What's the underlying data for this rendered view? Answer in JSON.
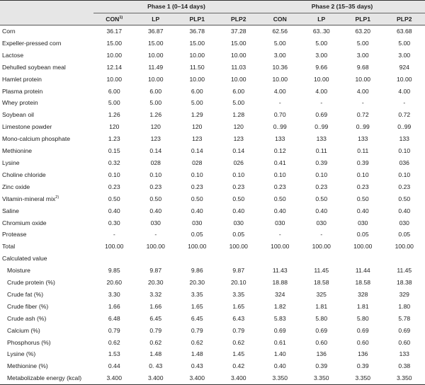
{
  "header": {
    "phase1": "Phase 1 (0–14 days)",
    "phase2": "Phase 2 (15–35 days)",
    "columns": [
      "CON",
      "LP",
      "PLP1",
      "PLP2",
      "CON",
      "LP",
      "PLP1",
      "PLP2"
    ],
    "con_footnote": "1)"
  },
  "rows": [
    {
      "label": "Corn",
      "values": [
        "36.17",
        "36.87",
        "36.78",
        "37.28",
        "62.56",
        "63..30",
        "63.20",
        "63.68"
      ]
    },
    {
      "label": "Expeller-pressed corn",
      "values": [
        "15.00",
        "15.00",
        "15.00",
        "15.00",
        "5.00",
        "5.00",
        "5.00",
        "5.00"
      ]
    },
    {
      "label": "Lactose",
      "values": [
        "10.00",
        "10.00",
        "10.00",
        "10.00",
        "3.00",
        "3.00",
        "3.00",
        "3.00"
      ]
    },
    {
      "label": "Dehulled soybean meal",
      "values": [
        "12.14",
        "11.49",
        "11.50",
        "11.03",
        "10.36",
        "9.66",
        "9.68",
        "924"
      ]
    },
    {
      "label": "Hamlet protein",
      "values": [
        "10.00",
        "10.00",
        "10.00",
        "10.00",
        "10.00",
        "10.00",
        "10.00",
        "10.00"
      ]
    },
    {
      "label": "Plasma protein",
      "values": [
        "6.00",
        "6.00",
        "6.00",
        "6.00",
        "4.00",
        "4.00",
        "4.00",
        "4.00"
      ]
    },
    {
      "label": "Whey protein",
      "values": [
        "5.00",
        "5.00",
        "5.00",
        "5.00",
        "-",
        "-",
        "-",
        "-"
      ]
    },
    {
      "label": "Soybean oil",
      "values": [
        "1.26",
        "1.26",
        "1.29",
        "1.28",
        "0.70",
        "0.69",
        "0.72",
        "0.72"
      ]
    },
    {
      "label": "Limestone powder",
      "values": [
        "120",
        "120",
        "120",
        "120",
        "0..99",
        "0..99",
        "0..99",
        "0..99"
      ]
    },
    {
      "label": "Mono-calcium phosphate",
      "values": [
        "1.23",
        "123",
        "123",
        "123",
        "133",
        "133",
        "133",
        "133"
      ]
    },
    {
      "label": "Methionine",
      "values": [
        "0.15",
        "0.14",
        "0.14",
        "0.14",
        "0.12",
        "0.11",
        "0.11",
        "0.10"
      ]
    },
    {
      "label": "Lysine",
      "values": [
        "0.32",
        "028",
        "028",
        "026",
        "0.41",
        "0.39",
        "0.39",
        "036"
      ]
    },
    {
      "label": "Choline chloride",
      "values": [
        "0.10",
        "0.10",
        "0.10",
        "0.10",
        "0.10",
        "0.10",
        "0.10",
        "0.10"
      ]
    },
    {
      "label": "Zinc oxide",
      "values": [
        "0.23",
        "0.23",
        "0.23",
        "0.23",
        "0.23",
        "0.23",
        "0.23",
        "0.23"
      ]
    },
    {
      "label": "Vitamin-mineral mix",
      "sup": "2)",
      "values": [
        "0.50",
        "0.50",
        "0.50",
        "0.50",
        "0.50",
        "0.50",
        "0.50",
        "0.50"
      ]
    },
    {
      "label": "Saline",
      "values": [
        "0.40",
        "0.40",
        "0.40",
        "0.40",
        "0.40",
        "0.40",
        "0.40",
        "0.40"
      ]
    },
    {
      "label": "Chromium oxide",
      "values": [
        "0.30",
        "030",
        "030",
        "030",
        "030",
        "030",
        "030",
        "030"
      ]
    },
    {
      "label": "Protease",
      "values": [
        "-",
        "-",
        "0.05",
        "0.05",
        "-",
        "-",
        "0.05",
        "0.05"
      ]
    },
    {
      "label": "Total",
      "values": [
        "100.00",
        "100.00",
        "100.00",
        "100.00",
        "100.00",
        "100.00",
        "100.00",
        "100.00"
      ]
    },
    {
      "label": "Calculated value",
      "values": [
        "",
        "",
        "",
        "",
        "",
        "",
        "",
        ""
      ]
    },
    {
      "label": "Moisture",
      "indent": true,
      "values": [
        "9.85",
        "9.87",
        "9.86",
        "9.87",
        "11.43",
        "11.45",
        "11.44",
        "11.45"
      ]
    },
    {
      "label": "Crude protein (%)",
      "indent": true,
      "values": [
        "20.60",
        "20.30",
        "20.30",
        "20.10",
        "18.88",
        "18.58",
        "18.58",
        "18.38"
      ]
    },
    {
      "label": "Crude fat (%)",
      "indent": true,
      "values": [
        "3.30",
        "3.32",
        "3.35",
        "3.35",
        "324",
        "325",
        "328",
        "329"
      ]
    },
    {
      "label": "Crude fiber (%)",
      "indent": true,
      "values": [
        "1.66",
        "1.66",
        "1.65",
        "1.65",
        "1.82",
        "1.81",
        "1.81",
        "1.80"
      ]
    },
    {
      "label": "Crude ash (%)",
      "indent": true,
      "values": [
        "6.48",
        "6.45",
        "6.45",
        "6.43",
        "5.83",
        "5.80",
        "5.80",
        "5.78"
      ]
    },
    {
      "label": "Calcium (%)",
      "indent": true,
      "values": [
        "0.79",
        "0.79",
        "0.79",
        "0.79",
        "0.69",
        "0.69",
        "0.69",
        "0.69"
      ]
    },
    {
      "label": "Phosphorus (%)",
      "indent": true,
      "values": [
        "0.62",
        "0.62",
        "0.62",
        "0.62",
        "0.61",
        "0.60",
        "0.60",
        "0.60"
      ]
    },
    {
      "label": "Lysine (%)",
      "indent": true,
      "values": [
        "1.53",
        "1.48",
        "1.48",
        "1.45",
        "1.40",
        "136",
        "136",
        "133"
      ]
    },
    {
      "label": "Methionine (%)",
      "indent": true,
      "values": [
        "0.44",
        "0. 43",
        "0.43",
        "0.42",
        "0.40",
        "0.39",
        "0.39",
        "0.38"
      ]
    },
    {
      "label": "Metabolizable energy (kcal)",
      "indent": true,
      "values": [
        "3.400",
        "3.400",
        "3.400",
        "3.400",
        "3.350",
        "3.350",
        "3.350",
        "3.350"
      ]
    }
  ]
}
